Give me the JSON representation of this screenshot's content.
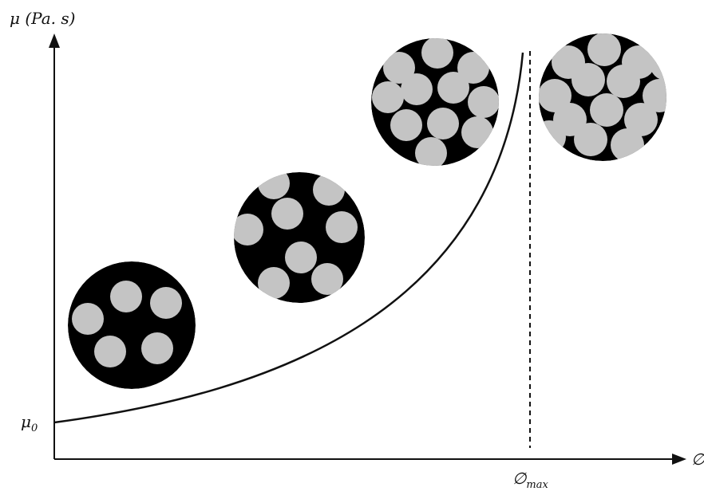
{
  "y_axis": {
    "label": "μ (Pa. s)"
  },
  "x_axis": {
    "label": "∅"
  },
  "baseline_label": {
    "symbol": "μ",
    "subscript": "0"
  },
  "max_label": {
    "symbol": "∅",
    "subscript": "max"
  }
}
